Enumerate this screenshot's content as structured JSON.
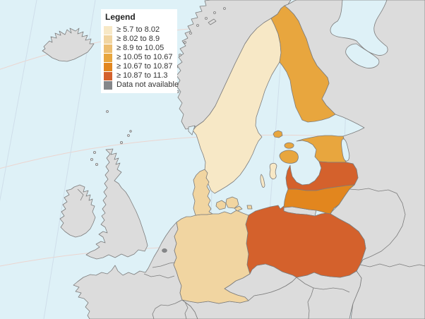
{
  "legend": {
    "title": "Legend",
    "items": [
      {
        "label": "≥ 5.7 to 8.02",
        "color": "#F7E8C6"
      },
      {
        "label": "≥ 8.02 to 8.9",
        "color": "#F1D5A1"
      },
      {
        "label": "≥ 8.9 to 10.05",
        "color": "#EDBE71"
      },
      {
        "label": "≥ 10.05 to 10.67",
        "color": "#E8A63E"
      },
      {
        "label": "≥ 10.67 to 10.87",
        "color": "#E2861E"
      },
      {
        "label": "≥ 10.87 to 11.3",
        "color": "#D4612C"
      },
      {
        "label": "Data not available",
        "color": "#85878A"
      }
    ]
  },
  "map": {
    "sea_color": "#DEF1F7",
    "no_data_fill": "#DCDCDC",
    "border_color": "#7C7C7C",
    "graticule_parallel_color": "#EBD5D0",
    "graticule_meridian_color": "#CFDEEA",
    "regions": [
      {
        "id": "sweden",
        "name": "Sweden",
        "class_index": 0
      },
      {
        "id": "gotland",
        "name": "Gotland (Sweden)",
        "class_index": 0
      },
      {
        "id": "oland",
        "name": "Öland (Sweden)",
        "class_index": 0
      },
      {
        "id": "germany",
        "name": "Germany",
        "class_index": 1
      },
      {
        "id": "denmark",
        "name": "Denmark",
        "class_index": 1
      },
      {
        "id": "finland",
        "name": "Finland",
        "class_index": 3
      },
      {
        "id": "aland",
        "name": "Åland (Finland)",
        "class_index": 3
      },
      {
        "id": "estonia",
        "name": "Estonia",
        "class_index": 3
      },
      {
        "id": "lithuania",
        "name": "Lithuania",
        "class_index": 4
      },
      {
        "id": "latvia",
        "name": "Latvia",
        "class_index": 5
      },
      {
        "id": "poland",
        "name": "Poland",
        "class_index": 5
      },
      {
        "id": "brussels",
        "name": "Brussels region",
        "class_index": 6
      },
      {
        "id": "iceland",
        "name": "Iceland",
        "class_index": -1
      },
      {
        "id": "norway",
        "name": "Norway",
        "class_index": -1
      },
      {
        "id": "united-kingdom",
        "name": "United Kingdom",
        "class_index": -1
      },
      {
        "id": "ireland",
        "name": "Ireland",
        "class_index": -1
      },
      {
        "id": "russia-belarus-ukraine",
        "name": "Russia / Belarus / Ukraine",
        "class_index": -1
      },
      {
        "id": "kaliningrad",
        "name": "Kaliningrad (Russia)",
        "class_index": -1
      },
      {
        "id": "france-benelux",
        "name": "France / Benelux / Switzerland",
        "class_index": -1
      },
      {
        "id": "czechia",
        "name": "Czechia",
        "class_index": -1
      },
      {
        "id": "austria-southeast",
        "name": "Austria / Slovakia / Hungary",
        "class_index": -1
      }
    ]
  }
}
